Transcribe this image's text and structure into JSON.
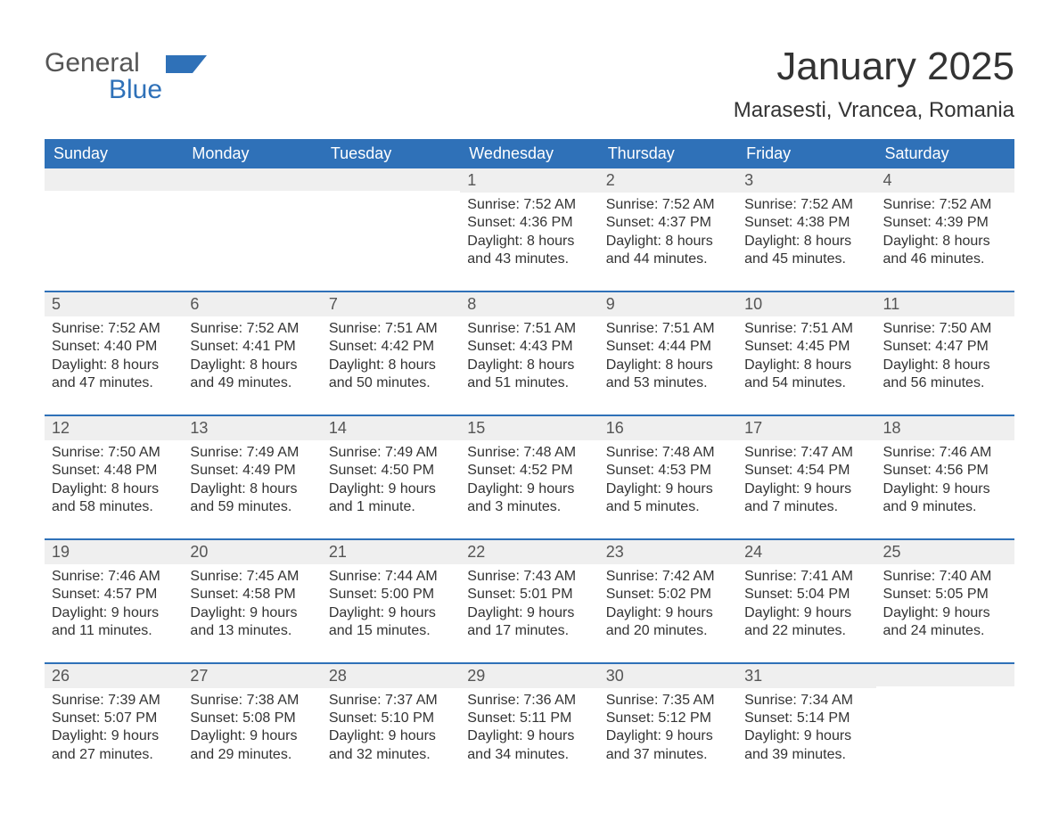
{
  "logo": {
    "text_gray": "General",
    "text_blue": "Blue",
    "gray_color": "#555555",
    "blue_color": "#2f71b8"
  },
  "title": "January 2025",
  "location": "Marasesti, Vrancea, Romania",
  "colors": {
    "header_bg": "#2f71b8",
    "header_text": "#ffffff",
    "daynum_bg": "#efefef",
    "text": "#333333",
    "week_border": "#2f71b8",
    "page_bg": "#ffffff"
  },
  "fonts": {
    "title_size_pt": 33,
    "location_size_pt": 18,
    "dow_size_pt": 14,
    "daynum_size_pt": 14,
    "body_size_pt": 12
  },
  "days_of_week": [
    "Sunday",
    "Monday",
    "Tuesday",
    "Wednesday",
    "Thursday",
    "Friday",
    "Saturday"
  ],
  "weeks": [
    [
      {
        "day": "",
        "sunrise": "",
        "sunset": "",
        "daylight1": "",
        "daylight2": ""
      },
      {
        "day": "",
        "sunrise": "",
        "sunset": "",
        "daylight1": "",
        "daylight2": ""
      },
      {
        "day": "",
        "sunrise": "",
        "sunset": "",
        "daylight1": "",
        "daylight2": ""
      },
      {
        "day": "1",
        "sunrise": "Sunrise: 7:52 AM",
        "sunset": "Sunset: 4:36 PM",
        "daylight1": "Daylight: 8 hours",
        "daylight2": "and 43 minutes."
      },
      {
        "day": "2",
        "sunrise": "Sunrise: 7:52 AM",
        "sunset": "Sunset: 4:37 PM",
        "daylight1": "Daylight: 8 hours",
        "daylight2": "and 44 minutes."
      },
      {
        "day": "3",
        "sunrise": "Sunrise: 7:52 AM",
        "sunset": "Sunset: 4:38 PM",
        "daylight1": "Daylight: 8 hours",
        "daylight2": "and 45 minutes."
      },
      {
        "day": "4",
        "sunrise": "Sunrise: 7:52 AM",
        "sunset": "Sunset: 4:39 PM",
        "daylight1": "Daylight: 8 hours",
        "daylight2": "and 46 minutes."
      }
    ],
    [
      {
        "day": "5",
        "sunrise": "Sunrise: 7:52 AM",
        "sunset": "Sunset: 4:40 PM",
        "daylight1": "Daylight: 8 hours",
        "daylight2": "and 47 minutes."
      },
      {
        "day": "6",
        "sunrise": "Sunrise: 7:52 AM",
        "sunset": "Sunset: 4:41 PM",
        "daylight1": "Daylight: 8 hours",
        "daylight2": "and 49 minutes."
      },
      {
        "day": "7",
        "sunrise": "Sunrise: 7:51 AM",
        "sunset": "Sunset: 4:42 PM",
        "daylight1": "Daylight: 8 hours",
        "daylight2": "and 50 minutes."
      },
      {
        "day": "8",
        "sunrise": "Sunrise: 7:51 AM",
        "sunset": "Sunset: 4:43 PM",
        "daylight1": "Daylight: 8 hours",
        "daylight2": "and 51 minutes."
      },
      {
        "day": "9",
        "sunrise": "Sunrise: 7:51 AM",
        "sunset": "Sunset: 4:44 PM",
        "daylight1": "Daylight: 8 hours",
        "daylight2": "and 53 minutes."
      },
      {
        "day": "10",
        "sunrise": "Sunrise: 7:51 AM",
        "sunset": "Sunset: 4:45 PM",
        "daylight1": "Daylight: 8 hours",
        "daylight2": "and 54 minutes."
      },
      {
        "day": "11",
        "sunrise": "Sunrise: 7:50 AM",
        "sunset": "Sunset: 4:47 PM",
        "daylight1": "Daylight: 8 hours",
        "daylight2": "and 56 minutes."
      }
    ],
    [
      {
        "day": "12",
        "sunrise": "Sunrise: 7:50 AM",
        "sunset": "Sunset: 4:48 PM",
        "daylight1": "Daylight: 8 hours",
        "daylight2": "and 58 minutes."
      },
      {
        "day": "13",
        "sunrise": "Sunrise: 7:49 AM",
        "sunset": "Sunset: 4:49 PM",
        "daylight1": "Daylight: 8 hours",
        "daylight2": "and 59 minutes."
      },
      {
        "day": "14",
        "sunrise": "Sunrise: 7:49 AM",
        "sunset": "Sunset: 4:50 PM",
        "daylight1": "Daylight: 9 hours",
        "daylight2": "and 1 minute."
      },
      {
        "day": "15",
        "sunrise": "Sunrise: 7:48 AM",
        "sunset": "Sunset: 4:52 PM",
        "daylight1": "Daylight: 9 hours",
        "daylight2": "and 3 minutes."
      },
      {
        "day": "16",
        "sunrise": "Sunrise: 7:48 AM",
        "sunset": "Sunset: 4:53 PM",
        "daylight1": "Daylight: 9 hours",
        "daylight2": "and 5 minutes."
      },
      {
        "day": "17",
        "sunrise": "Sunrise: 7:47 AM",
        "sunset": "Sunset: 4:54 PM",
        "daylight1": "Daylight: 9 hours",
        "daylight2": "and 7 minutes."
      },
      {
        "day": "18",
        "sunrise": "Sunrise: 7:46 AM",
        "sunset": "Sunset: 4:56 PM",
        "daylight1": "Daylight: 9 hours",
        "daylight2": "and 9 minutes."
      }
    ],
    [
      {
        "day": "19",
        "sunrise": "Sunrise: 7:46 AM",
        "sunset": "Sunset: 4:57 PM",
        "daylight1": "Daylight: 9 hours",
        "daylight2": "and 11 minutes."
      },
      {
        "day": "20",
        "sunrise": "Sunrise: 7:45 AM",
        "sunset": "Sunset: 4:58 PM",
        "daylight1": "Daylight: 9 hours",
        "daylight2": "and 13 minutes."
      },
      {
        "day": "21",
        "sunrise": "Sunrise: 7:44 AM",
        "sunset": "Sunset: 5:00 PM",
        "daylight1": "Daylight: 9 hours",
        "daylight2": "and 15 minutes."
      },
      {
        "day": "22",
        "sunrise": "Sunrise: 7:43 AM",
        "sunset": "Sunset: 5:01 PM",
        "daylight1": "Daylight: 9 hours",
        "daylight2": "and 17 minutes."
      },
      {
        "day": "23",
        "sunrise": "Sunrise: 7:42 AM",
        "sunset": "Sunset: 5:02 PM",
        "daylight1": "Daylight: 9 hours",
        "daylight2": "and 20 minutes."
      },
      {
        "day": "24",
        "sunrise": "Sunrise: 7:41 AM",
        "sunset": "Sunset: 5:04 PM",
        "daylight1": "Daylight: 9 hours",
        "daylight2": "and 22 minutes."
      },
      {
        "day": "25",
        "sunrise": "Sunrise: 7:40 AM",
        "sunset": "Sunset: 5:05 PM",
        "daylight1": "Daylight: 9 hours",
        "daylight2": "and 24 minutes."
      }
    ],
    [
      {
        "day": "26",
        "sunrise": "Sunrise: 7:39 AM",
        "sunset": "Sunset: 5:07 PM",
        "daylight1": "Daylight: 9 hours",
        "daylight2": "and 27 minutes."
      },
      {
        "day": "27",
        "sunrise": "Sunrise: 7:38 AM",
        "sunset": "Sunset: 5:08 PM",
        "daylight1": "Daylight: 9 hours",
        "daylight2": "and 29 minutes."
      },
      {
        "day": "28",
        "sunrise": "Sunrise: 7:37 AM",
        "sunset": "Sunset: 5:10 PM",
        "daylight1": "Daylight: 9 hours",
        "daylight2": "and 32 minutes."
      },
      {
        "day": "29",
        "sunrise": "Sunrise: 7:36 AM",
        "sunset": "Sunset: 5:11 PM",
        "daylight1": "Daylight: 9 hours",
        "daylight2": "and 34 minutes."
      },
      {
        "day": "30",
        "sunrise": "Sunrise: 7:35 AM",
        "sunset": "Sunset: 5:12 PM",
        "daylight1": "Daylight: 9 hours",
        "daylight2": "and 37 minutes."
      },
      {
        "day": "31",
        "sunrise": "Sunrise: 7:34 AM",
        "sunset": "Sunset: 5:14 PM",
        "daylight1": "Daylight: 9 hours",
        "daylight2": "and 39 minutes."
      },
      {
        "day": "",
        "sunrise": "",
        "sunset": "",
        "daylight1": "",
        "daylight2": ""
      }
    ]
  ]
}
